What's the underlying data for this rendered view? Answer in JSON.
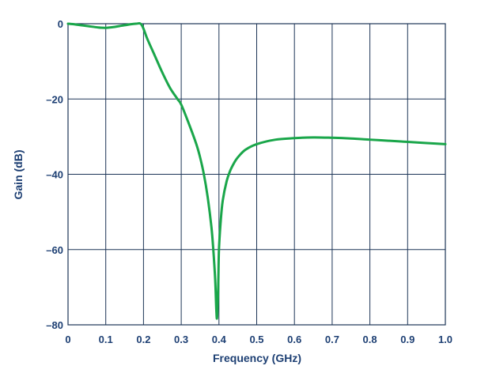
{
  "chart_data": {
    "type": "line",
    "title": "",
    "xlabel": "Frequency (GHz)",
    "ylabel": "Gain (dB)",
    "xlim": [
      0,
      1.0
    ],
    "ylim": [
      -80,
      0
    ],
    "x_ticks": [
      0,
      0.1,
      0.2,
      0.3,
      0.4,
      0.5,
      0.6,
      0.7,
      0.8,
      0.9,
      1.0
    ],
    "x_tick_labels": [
      "0",
      "0.1",
      "0.2",
      "0.3",
      "0.4",
      "0.5",
      "0.6",
      "0.7",
      "0.8",
      "0.9",
      "1.0"
    ],
    "y_ticks": [
      0,
      -20,
      -40,
      -60,
      -80
    ],
    "y_tick_labels": [
      "0",
      "–20",
      "–40",
      "–60",
      "–80"
    ],
    "grid": true,
    "colors": {
      "grid": "#1d3557",
      "axis_text": "#1d3f73",
      "line": "#1aa64a"
    },
    "series": [
      {
        "x": [
          0,
          0.02,
          0.05,
          0.08,
          0.1,
          0.12,
          0.15,
          0.18,
          0.195,
          0.21,
          0.23,
          0.25,
          0.27,
          0.29,
          0.3,
          0.32,
          0.34,
          0.35,
          0.36,
          0.37,
          0.38,
          0.385,
          0.39,
          0.393,
          0.395,
          0.398,
          0.4,
          0.405,
          0.41,
          0.42,
          0.43,
          0.44,
          0.45,
          0.47,
          0.5,
          0.55,
          0.6,
          0.65,
          0.7,
          0.75,
          0.8,
          0.85,
          0.9,
          0.95,
          1.0
        ],
        "values": [
          0,
          -0.2,
          -0.6,
          -1.0,
          -1.1,
          -0.9,
          -0.4,
          0,
          -0.3,
          -4.0,
          -8.5,
          -13.0,
          -17.0,
          -20.0,
          -21.5,
          -26.5,
          -32.0,
          -35.5,
          -40.0,
          -46.0,
          -54.0,
          -60.0,
          -68.0,
          -76.0,
          -78.0,
          -70.0,
          -60.0,
          -52.0,
          -47.0,
          -42.0,
          -39.0,
          -37.0,
          -35.5,
          -33.5,
          -32.0,
          -30.8,
          -30.4,
          -30.2,
          -30.3,
          -30.5,
          -30.8,
          -31.1,
          -31.4,
          -31.7,
          -32.0
        ]
      }
    ]
  }
}
